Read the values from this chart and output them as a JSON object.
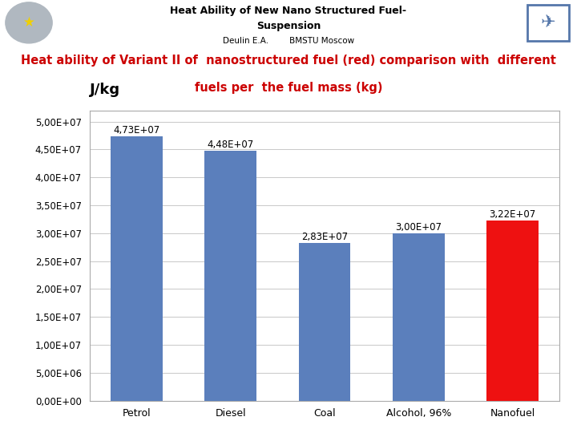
{
  "categories": [
    "Petrol",
    "Diesel",
    "Coal",
    "Alcohol, 96%",
    "Nanofuel"
  ],
  "values": [
    47300000.0,
    44800000.0,
    28300000.0,
    30000000.0,
    32200000.0
  ],
  "bar_colors": [
    "#5b7fbc",
    "#5b7fbc",
    "#5b7fbc",
    "#5b7fbc",
    "#ee1111"
  ],
  "bar_labels": [
    "4,73E+07",
    "4,48E+07",
    "2,83E+07",
    "3,00E+07",
    "3,22E+07"
  ],
  "ylabel": "J/kg",
  "ylim": [
    0,
    52000000.0
  ],
  "yticks": [
    0,
    5000000.0,
    10000000.0,
    15000000.0,
    20000000.0,
    25000000.0,
    30000000.0,
    35000000.0,
    40000000.0,
    45000000.0,
    50000000.0
  ],
  "ytick_labels": [
    "0,00E+00",
    "5,00E+06",
    "1,00E+07",
    "1,50E+07",
    "2,00E+07",
    "2,50E+07",
    "3,00E+07",
    "3,50E+07",
    "4,00E+07",
    "4,50E+07",
    "5,00E+07"
  ],
  "header_line1": "Heat Ability of New Nano Structured Fuel-",
  "header_line2": "Suspension",
  "header_line3": "Deulin E.A.        BMSTU Moscow",
  "subtitle_full1": "Heat ability of Variant II of  nanostructured fuel (red) comparison with  different",
  "subtitle_full2": "fuels per  the fuel mass (kg)",
  "background_color": "#ffffff",
  "chart_bg": "#ffffff",
  "grid_color": "#c8c8c8",
  "subtitle_color": "#cc0000",
  "bar_label_fontsize": 8.5,
  "ytick_fontsize": 8.5,
  "xtick_fontsize": 9,
  "ylabel_fontsize": 13,
  "header_fontsize": 9,
  "subtitle_fontsize": 10.5
}
